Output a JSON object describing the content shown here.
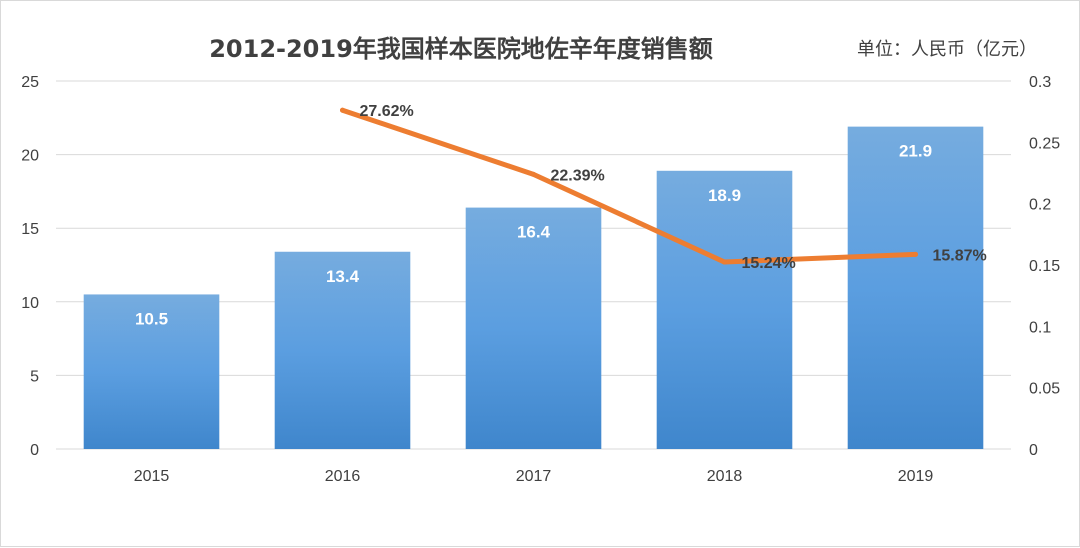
{
  "chart_data": {
    "type": "bar",
    "title": "2012-2019年我国样本医院地佐辛年度销售额",
    "unit": "单位：人民币（亿元）",
    "categories": [
      "2015",
      "2016",
      "2017",
      "2018",
      "2019"
    ],
    "series": [
      {
        "type": "bar",
        "axis": "left",
        "values": [
          10.5,
          13.4,
          16.4,
          18.9,
          21.9
        ],
        "labels": [
          "10.5",
          "13.4",
          "16.4",
          "18.9",
          "21.9"
        ],
        "color": "#5b9bd5"
      },
      {
        "type": "line",
        "axis": "right",
        "values": [
          null,
          0.2762,
          0.2239,
          0.1524,
          0.1587
        ],
        "labels": [
          "",
          "27.62%",
          "22.39%",
          "15.24%",
          "15.87%"
        ],
        "color": "#ed7d31"
      }
    ],
    "y_left": {
      "min": 0,
      "max": 25,
      "ticks": [
        "0",
        "5",
        "10",
        "15",
        "20",
        "25"
      ]
    },
    "y_right": {
      "min": 0,
      "max": 0.3,
      "ticks": [
        "0",
        "0.05",
        "0.1",
        "0.15",
        "0.2",
        "0.25",
        "0.3"
      ]
    },
    "grid": true,
    "legend": "none"
  }
}
